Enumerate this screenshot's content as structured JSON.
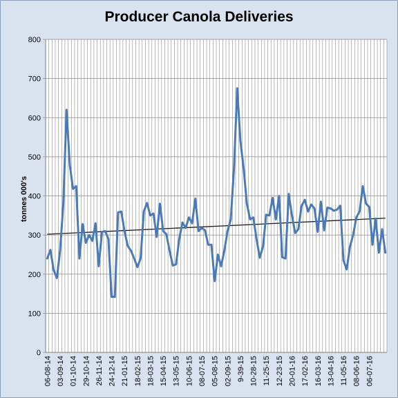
{
  "chart_data": {
    "type": "line",
    "title": "Producer Canola Deliveries",
    "ylabel": "tonnes 000's",
    "xlabel": "",
    "ylim": [
      0,
      800
    ],
    "yticks": [
      0,
      100,
      200,
      300,
      400,
      500,
      600,
      700,
      800
    ],
    "grid": true,
    "legend": "none",
    "x_tick_labels": [
      "06-08-14",
      "03-09-14",
      "01-10-14",
      "29-10-14",
      "26-11-14",
      "24-12-14",
      "21-01-15",
      "18-02-15",
      "18-03-15",
      "15-04-15",
      "13-05-15",
      "10-06-15",
      "08-07-15",
      "05-08-15",
      "02-09-15",
      "9-39-15",
      "10-28-15",
      "11-25-15",
      "12-23-15",
      "20-01-16",
      "17-02-16",
      "16-03-16",
      "13-04-16",
      "11-05-16",
      "08-06-16",
      "06-07-16"
    ],
    "series": [
      {
        "color": "#4a7ab8",
        "values": [
          240,
          262,
          210,
          190,
          260,
          380,
          620,
          480,
          418,
          425,
          240,
          328,
          280,
          300,
          285,
          330,
          220,
          308,
          310,
          290,
          142,
          142,
          358,
          360,
          310,
          272,
          260,
          240,
          218,
          240,
          360,
          382,
          350,
          355,
          295,
          380,
          310,
          302,
          260,
          222,
          225,
          290,
          332,
          318,
          345,
          330,
          393,
          310,
          318,
          312,
          275,
          275,
          182,
          250,
          220,
          260,
          310,
          340,
          470,
          675,
          540,
          470,
          380,
          340,
          345,
          290,
          242,
          270,
          352,
          350,
          395,
          340,
          400,
          243,
          240,
          405,
          350,
          305,
          315,
          375,
          390,
          360,
          378,
          368,
          308,
          385,
          312,
          370,
          368,
          362,
          365,
          375,
          235,
          212,
          270,
          300,
          345,
          360,
          425,
          380,
          372,
          275,
          342,
          255,
          315,
          255
        ],
        "trend_start": 302,
        "trend_end": 343,
        "trend_color": "#1a1a1a"
      }
    ]
  }
}
